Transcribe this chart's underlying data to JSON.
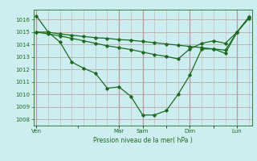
{
  "title": "Pression niveau de la mer( hPa )",
  "bg_color": "#cceef0",
  "line_color": "#1a6b1a",
  "grid_color_h": "#bb9999",
  "grid_color_v": "#ccaaaa",
  "ylim": [
    1007.5,
    1016.8
  ],
  "yticks": [
    1008,
    1009,
    1010,
    1011,
    1012,
    1013,
    1014,
    1015,
    1016
  ],
  "xtick_labels": [
    "Ven",
    "",
    "Mar",
    "Sam",
    "",
    "Dim",
    "",
    "Lun"
  ],
  "xtick_positions": [
    0,
    7,
    14,
    18,
    22,
    26,
    30,
    34
  ],
  "vlines": [
    0,
    2,
    4,
    6,
    8,
    10,
    12,
    14,
    16,
    18,
    20,
    22,
    24,
    26,
    28,
    30,
    32,
    34,
    36
  ],
  "day_vlines": [
    0,
    14,
    18,
    26,
    34
  ],
  "series1_x": [
    0,
    2,
    4,
    6,
    8,
    10,
    12,
    14,
    16,
    18,
    20,
    22,
    24,
    26,
    28,
    30,
    32,
    34,
    36
  ],
  "series1_y": [
    1016.3,
    1015.0,
    1014.85,
    1014.75,
    1014.65,
    1014.55,
    1014.5,
    1014.4,
    1014.35,
    1014.25,
    1014.15,
    1014.05,
    1013.95,
    1013.85,
    1013.75,
    1013.65,
    1013.55,
    1015.0,
    1016.2
  ],
  "series2_x": [
    0,
    2,
    4,
    6,
    8,
    10,
    12,
    14,
    16,
    18,
    20,
    22,
    24,
    26,
    28,
    30,
    32,
    34,
    36
  ],
  "series2_y": [
    1015.0,
    1015.0,
    1014.2,
    1012.6,
    1012.1,
    1011.7,
    1010.5,
    1010.6,
    1009.85,
    1008.35,
    1008.35,
    1008.7,
    1010.0,
    1011.55,
    1013.65,
    1013.65,
    1013.3,
    1015.0,
    1016.2
  ],
  "series3_x": [
    0,
    2,
    4,
    6,
    8,
    10,
    12,
    14,
    16,
    18,
    20,
    22,
    24,
    26,
    28,
    30,
    32,
    34,
    36
  ],
  "series3_y": [
    1015.0,
    1014.85,
    1014.7,
    1014.5,
    1014.3,
    1014.1,
    1013.9,
    1013.75,
    1013.6,
    1013.4,
    1013.2,
    1013.05,
    1012.85,
    1013.65,
    1014.1,
    1014.3,
    1014.1,
    1015.0,
    1016.1
  ],
  "marker": "D",
  "markersize": 1.8,
  "linewidth": 0.9,
  "ylabel_fontsize": 5.5,
  "tick_fontsize": 5.0
}
